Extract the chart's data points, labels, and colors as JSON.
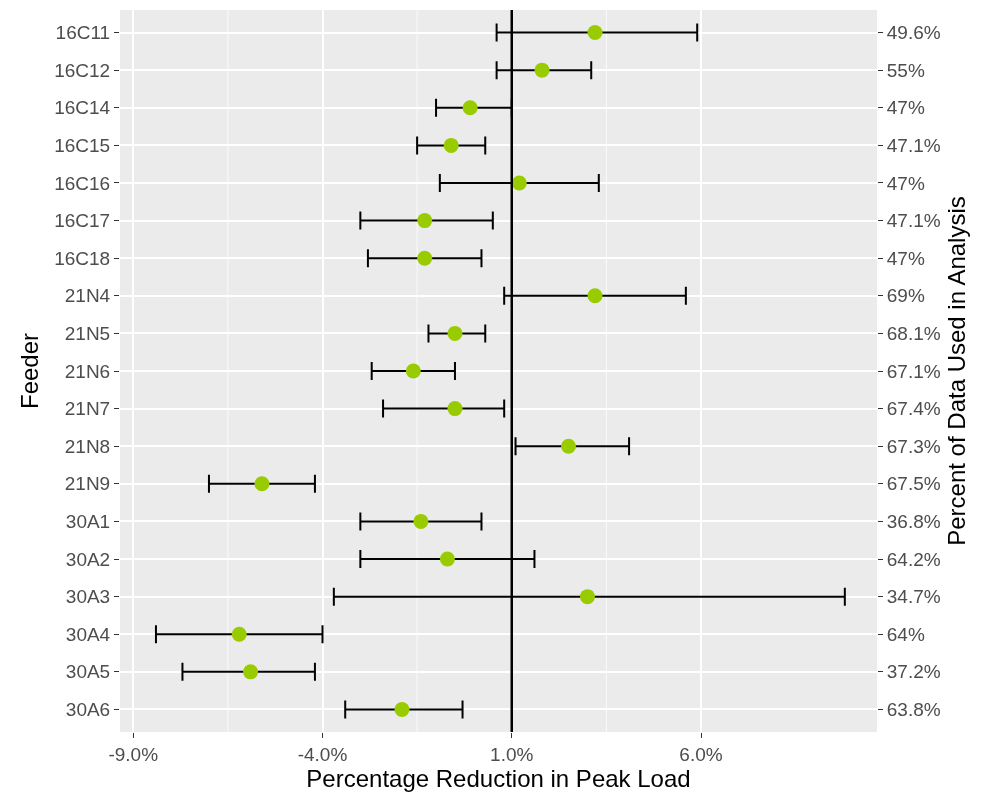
{
  "chart_data": {
    "type": "scatter",
    "orientation": "horizontal",
    "xlabel": "Percentage Reduction in Peak Load",
    "ylabel": "Feeder",
    "y2label": "Percent of Data Used in Analysis",
    "categories": [
      "16C11",
      "16C12",
      "16C14",
      "16C15",
      "16C16",
      "16C17",
      "16C18",
      "21N4",
      "21N5",
      "21N6",
      "21N7",
      "21N8",
      "21N9",
      "30A1",
      "30A2",
      "30A3",
      "30A4",
      "30A5",
      "30A6"
    ],
    "y2_categories": [
      "49.6%",
      "55%",
      "47%",
      "47.1%",
      "47%",
      "47.1%",
      "47%",
      "69%",
      "68.1%",
      "67.1%",
      "67.4%",
      "67.3%",
      "67.5%",
      "36.8%",
      "64.2%",
      "34.7%",
      "64%",
      "37.2%",
      "63.8%"
    ],
    "series": [
      {
        "color": "#99cc00",
        "values": [
          3.2,
          1.8,
          -0.1,
          -0.6,
          1.2,
          -1.3,
          -1.3,
          3.2,
          -0.5,
          -1.6,
          -0.5,
          2.5,
          -5.6,
          -1.4,
          -0.7,
          3.0,
          -6.2,
          -5.9,
          -1.9
        ],
        "errors": [
          [
            0.6,
            5.9
          ],
          [
            0.6,
            3.1
          ],
          [
            -1.0,
            1.0
          ],
          [
            -1.5,
            0.3
          ],
          [
            -0.9,
            3.3
          ],
          [
            -3.0,
            0.5
          ],
          [
            -2.8,
            0.2
          ],
          [
            0.8,
            5.6
          ],
          [
            -1.2,
            0.3
          ],
          [
            -2.7,
            -0.5
          ],
          [
            -2.4,
            0.8
          ],
          [
            1.1,
            4.1
          ],
          [
            -7.0,
            -4.2
          ],
          [
            -3.0,
            0.2
          ],
          [
            -3.0,
            1.6
          ],
          [
            -3.7,
            9.8
          ],
          [
            -8.4,
            -4.0
          ],
          [
            -7.7,
            -4.2
          ],
          [
            -3.4,
            -0.3
          ]
        ]
      }
    ],
    "xlim": [
      -9.35,
      10.65
    ],
    "xticks": [
      {
        "value": -9,
        "label": "-9.0%"
      },
      {
        "value": -4,
        "label": "-4.0%"
      },
      {
        "value": 1,
        "label": "1.0%"
      },
      {
        "value": 6,
        "label": "6.0%"
      }
    ],
    "ref_lines": [
      {
        "axis": "x",
        "value": 1,
        "color": "#000000"
      }
    ],
    "grid": true,
    "marker": "circle"
  }
}
